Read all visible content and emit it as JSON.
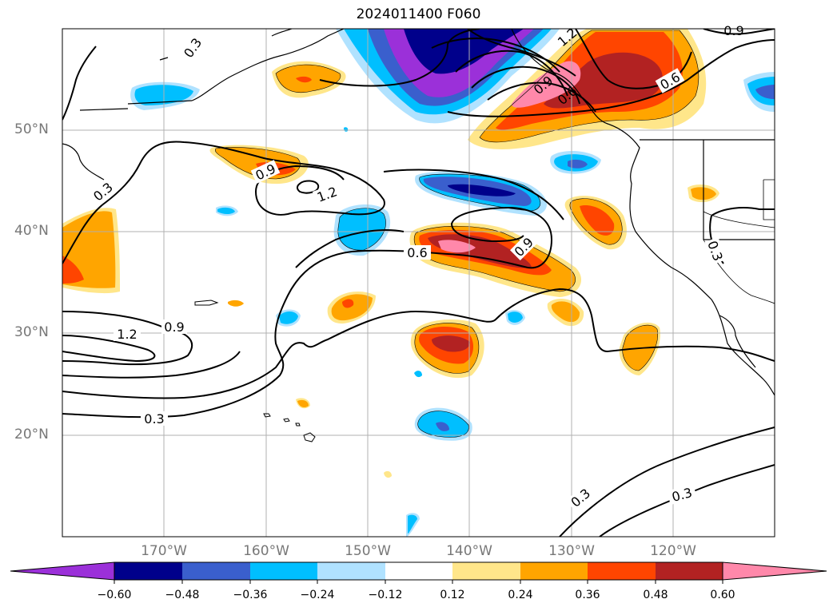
{
  "map": {
    "title": "2024011400 F060",
    "lat_labels": [
      "50°N",
      "40°N",
      "30°N",
      "20°N"
    ],
    "lon_labels": [
      "170°W",
      "160°W",
      "150°W",
      "140°W",
      "130°W",
      "120°W"
    ],
    "contour_labels": [
      "0.3",
      "0.3",
      "0.9",
      "1.2",
      "0.6",
      "0.9",
      "0.9",
      "1.2",
      "0.3",
      "0.3",
      "0.6",
      "0.3",
      "0.3",
      "0.9",
      "0.6",
      "1.2",
      "0.9"
    ]
  },
  "colorbar": {
    "tick_labels": [
      "−0.60",
      "−0.48",
      "−0.36",
      "−0.24",
      "−0.12",
      "0.12",
      "0.24",
      "0.36",
      "0.48",
      "0.60"
    ],
    "colors": [
      "#9b30d9",
      "#00008b",
      "#3a5fcd",
      "#00bfff",
      "#b0e2ff",
      "#ffffff",
      "#ffe68a",
      "#ffa500",
      "#ff4500",
      "#b22222",
      "#ff88aa",
      "#ff88aa"
    ]
  }
}
